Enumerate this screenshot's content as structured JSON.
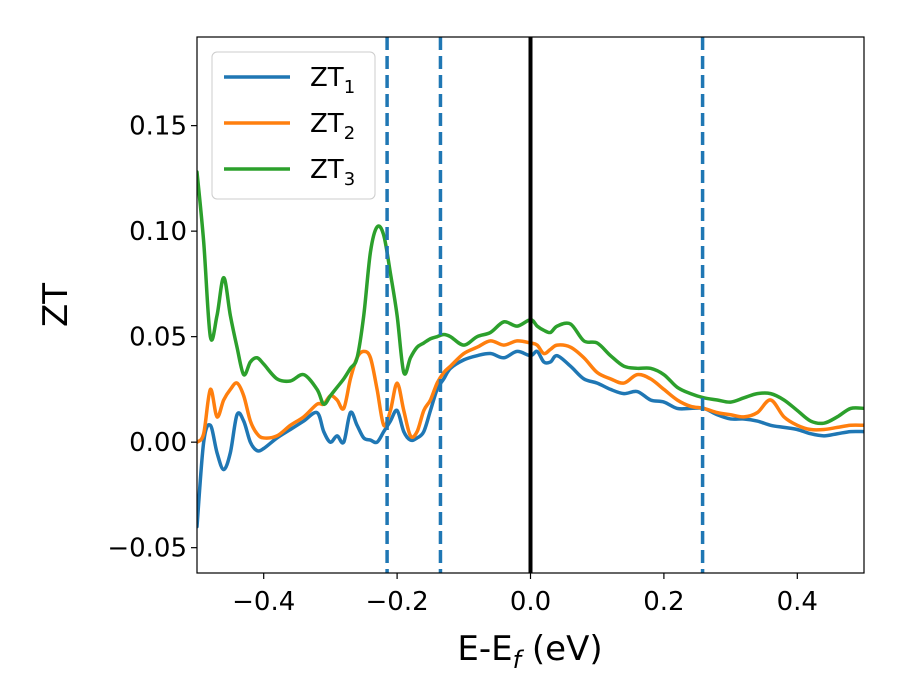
{
  "chart_data": {
    "type": "line",
    "xlabel_main": "E-E",
    "xlabel_sub": "f",
    "xlabel_unit": " (eV)",
    "ylabel": "ZT",
    "xlim": [
      -0.5,
      0.5
    ],
    "ylim": [
      -0.062,
      0.192
    ],
    "xticks": [
      -0.4,
      -0.2,
      0.0,
      0.2,
      0.4
    ],
    "xtick_labels": [
      "−0.4",
      "−0.2",
      "0.0",
      "0.2",
      "0.4"
    ],
    "yticks": [
      -0.05,
      0.0,
      0.05,
      0.1,
      0.15
    ],
    "ytick_labels": [
      "−0.05",
      "0.00",
      "0.05",
      "0.10",
      "0.15"
    ],
    "grid": false,
    "legend_position": "top-left",
    "vlines": [
      {
        "x": 0.0,
        "style": "solid",
        "color": "#000000"
      },
      {
        "x": -0.215,
        "style": "dashed",
        "color": "#1f77b4"
      },
      {
        "x": -0.135,
        "style": "dashed",
        "color": "#1f77b4"
      },
      {
        "x": 0.258,
        "style": "dashed",
        "color": "#1f77b4"
      }
    ],
    "series": [
      {
        "name": "ZT",
        "name_sub": "1",
        "color": "#1f77b4",
        "x": [
          -0.5,
          -0.49,
          -0.48,
          -0.47,
          -0.46,
          -0.45,
          -0.44,
          -0.43,
          -0.42,
          -0.41,
          -0.4,
          -0.38,
          -0.36,
          -0.34,
          -0.32,
          -0.31,
          -0.3,
          -0.29,
          -0.28,
          -0.27,
          -0.26,
          -0.25,
          -0.24,
          -0.23,
          -0.22,
          -0.21,
          -0.2,
          -0.19,
          -0.18,
          -0.17,
          -0.16,
          -0.15,
          -0.14,
          -0.13,
          -0.12,
          -0.1,
          -0.08,
          -0.06,
          -0.04,
          -0.02,
          0.0,
          0.01,
          0.02,
          0.03,
          0.04,
          0.06,
          0.08,
          0.1,
          0.12,
          0.14,
          0.16,
          0.18,
          0.2,
          0.22,
          0.24,
          0.26,
          0.28,
          0.3,
          0.32,
          0.34,
          0.36,
          0.38,
          0.4,
          0.42,
          0.44,
          0.46,
          0.48,
          0.5
        ],
        "values": [
          -0.04,
          0.0,
          0.008,
          -0.005,
          -0.013,
          -0.005,
          0.013,
          0.01,
          0.0,
          -0.004,
          -0.003,
          0.002,
          0.006,
          0.01,
          0.014,
          0.005,
          0.0,
          0.003,
          0.0,
          0.014,
          0.008,
          0.002,
          0.001,
          0.0,
          0.005,
          0.01,
          0.015,
          0.005,
          0.001,
          0.002,
          0.005,
          0.015,
          0.025,
          0.03,
          0.035,
          0.039,
          0.041,
          0.042,
          0.04,
          0.043,
          0.041,
          0.043,
          0.038,
          0.038,
          0.041,
          0.036,
          0.03,
          0.028,
          0.025,
          0.023,
          0.024,
          0.02,
          0.019,
          0.016,
          0.016,
          0.016,
          0.013,
          0.011,
          0.011,
          0.01,
          0.008,
          0.007,
          0.006,
          0.004,
          0.003,
          0.004,
          0.005,
          0.005
        ]
      },
      {
        "name": "ZT",
        "name_sub": "2",
        "color": "#ff7f0e",
        "x": [
          -0.5,
          -0.49,
          -0.48,
          -0.47,
          -0.46,
          -0.45,
          -0.44,
          -0.43,
          -0.42,
          -0.41,
          -0.4,
          -0.38,
          -0.36,
          -0.34,
          -0.32,
          -0.31,
          -0.3,
          -0.29,
          -0.28,
          -0.27,
          -0.26,
          -0.25,
          -0.24,
          -0.23,
          -0.22,
          -0.21,
          -0.2,
          -0.19,
          -0.18,
          -0.17,
          -0.16,
          -0.15,
          -0.14,
          -0.13,
          -0.12,
          -0.1,
          -0.08,
          -0.06,
          -0.04,
          -0.02,
          0.0,
          0.01,
          0.02,
          0.03,
          0.04,
          0.06,
          0.08,
          0.1,
          0.12,
          0.14,
          0.16,
          0.18,
          0.2,
          0.22,
          0.24,
          0.26,
          0.28,
          0.3,
          0.32,
          0.34,
          0.36,
          0.38,
          0.4,
          0.42,
          0.44,
          0.46,
          0.48,
          0.5
        ],
        "values": [
          0.0,
          0.004,
          0.025,
          0.012,
          0.02,
          0.025,
          0.028,
          0.022,
          0.01,
          0.004,
          0.002,
          0.003,
          0.008,
          0.012,
          0.018,
          0.018,
          0.022,
          0.02,
          0.016,
          0.03,
          0.04,
          0.043,
          0.04,
          0.025,
          0.008,
          0.015,
          0.028,
          0.015,
          0.003,
          0.005,
          0.015,
          0.02,
          0.028,
          0.033,
          0.036,
          0.042,
          0.045,
          0.048,
          0.046,
          0.048,
          0.047,
          0.046,
          0.042,
          0.044,
          0.046,
          0.045,
          0.04,
          0.033,
          0.03,
          0.028,
          0.032,
          0.03,
          0.025,
          0.02,
          0.017,
          0.016,
          0.014,
          0.013,
          0.012,
          0.014,
          0.02,
          0.012,
          0.008,
          0.006,
          0.006,
          0.007,
          0.008,
          0.008
        ]
      },
      {
        "name": "ZT",
        "name_sub": "3",
        "color": "#2ca02c",
        "x": [
          -0.5,
          -0.49,
          -0.48,
          -0.47,
          -0.46,
          -0.45,
          -0.44,
          -0.43,
          -0.42,
          -0.41,
          -0.4,
          -0.38,
          -0.36,
          -0.34,
          -0.32,
          -0.31,
          -0.3,
          -0.29,
          -0.28,
          -0.27,
          -0.26,
          -0.25,
          -0.24,
          -0.23,
          -0.22,
          -0.21,
          -0.2,
          -0.19,
          -0.18,
          -0.17,
          -0.16,
          -0.15,
          -0.14,
          -0.13,
          -0.12,
          -0.1,
          -0.08,
          -0.06,
          -0.04,
          -0.02,
          0.0,
          0.01,
          0.02,
          0.03,
          0.04,
          0.06,
          0.08,
          0.1,
          0.12,
          0.14,
          0.16,
          0.18,
          0.2,
          0.22,
          0.24,
          0.26,
          0.28,
          0.3,
          0.32,
          0.34,
          0.36,
          0.38,
          0.4,
          0.42,
          0.44,
          0.46,
          0.48,
          0.5
        ],
        "values": [
          0.128,
          0.095,
          0.05,
          0.06,
          0.078,
          0.06,
          0.045,
          0.032,
          0.038,
          0.04,
          0.037,
          0.03,
          0.029,
          0.032,
          0.025,
          0.018,
          0.022,
          0.026,
          0.03,
          0.035,
          0.04,
          0.06,
          0.09,
          0.102,
          0.098,
          0.08,
          0.06,
          0.033,
          0.04,
          0.045,
          0.047,
          0.049,
          0.05,
          0.051,
          0.05,
          0.046,
          0.05,
          0.052,
          0.057,
          0.055,
          0.058,
          0.055,
          0.053,
          0.052,
          0.055,
          0.056,
          0.048,
          0.047,
          0.041,
          0.036,
          0.035,
          0.035,
          0.032,
          0.026,
          0.023,
          0.021,
          0.02,
          0.019,
          0.021,
          0.023,
          0.023,
          0.02,
          0.015,
          0.01,
          0.009,
          0.012,
          0.016,
          0.016
        ]
      }
    ]
  }
}
